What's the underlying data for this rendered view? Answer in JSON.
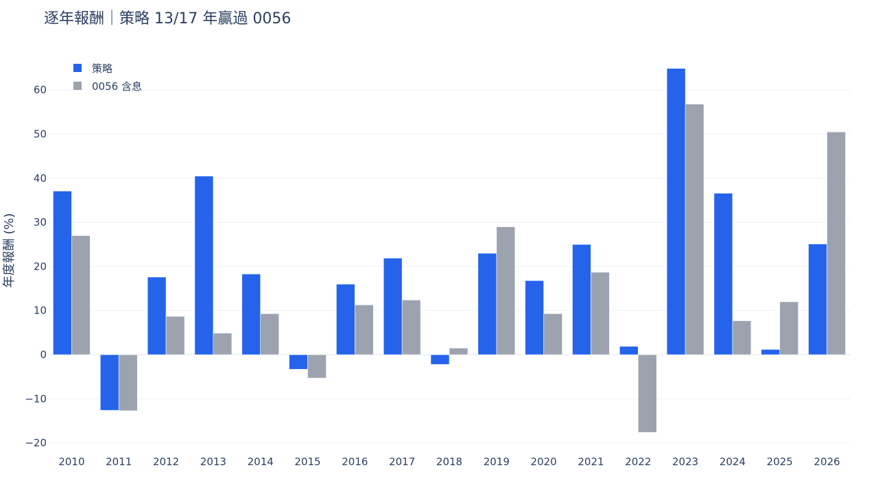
{
  "chart_data": {
    "type": "bar",
    "title": "逐年報酬｜策略 13/17 年贏過 0056",
    "xlabel": "",
    "ylabel": "年度報酬 (%)",
    "ylim": [
      -22,
      70
    ],
    "yticks": [
      -20,
      -10,
      0,
      10,
      20,
      30,
      40,
      50,
      60
    ],
    "ytick_labels": [
      "−20",
      "−10",
      "0",
      "10",
      "20",
      "30",
      "40",
      "50",
      "60"
    ],
    "grid": true,
    "legend_position": "top-left",
    "categories": [
      "2010",
      "2011",
      "2012",
      "2013",
      "2014",
      "2015",
      "2016",
      "2017",
      "2018",
      "2019",
      "2020",
      "2021",
      "2022",
      "2023",
      "2024",
      "2025",
      "2026"
    ],
    "series": [
      {
        "name": "策略",
        "color": "#2563eb",
        "values": [
          37.1,
          -12.6,
          17.6,
          40.5,
          18.3,
          -3.3,
          16.0,
          21.9,
          -2.2,
          23.0,
          16.8,
          25.0,
          1.9,
          64.9,
          36.6,
          1.2,
          25.1
        ]
      },
      {
        "name": "0056 含息",
        "color": "#9ca3af",
        "values": [
          27.0,
          -12.7,
          8.7,
          4.9,
          9.3,
          -5.3,
          11.3,
          12.4,
          1.5,
          29.0,
          9.3,
          18.7,
          -17.6,
          56.8,
          7.7,
          12.0,
          50.5
        ]
      }
    ]
  }
}
